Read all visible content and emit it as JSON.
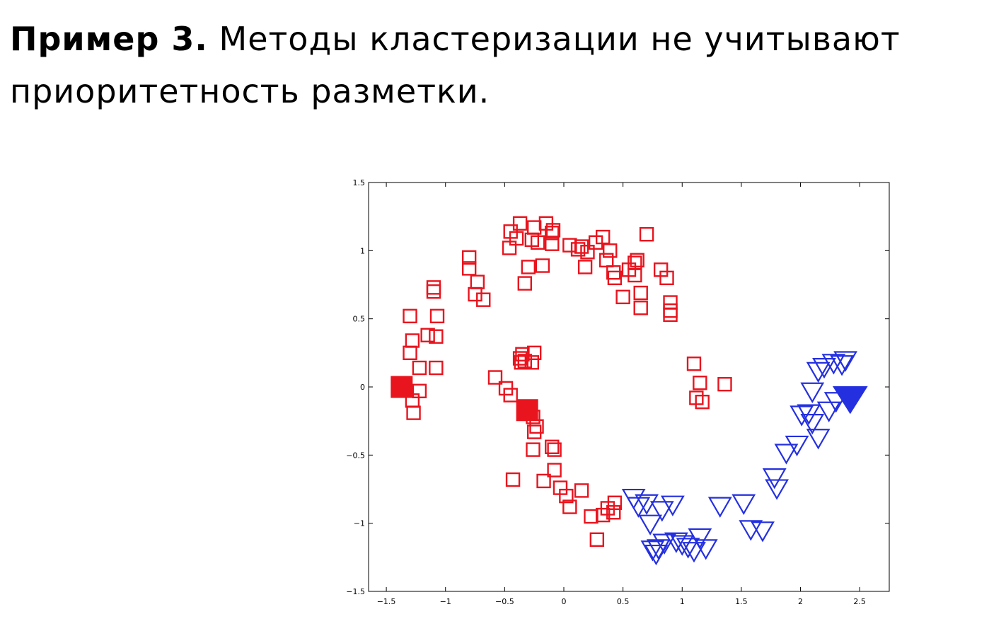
{
  "slide": {
    "title_lead": "Пример 3.",
    "title_rest": " Методы кластеризации не учитывают приоритетность разметки."
  },
  "colors": {
    "cluster_red": "#e8141e",
    "cluster_blue": "#2430e0"
  },
  "chart_data": {
    "type": "scatter",
    "title": "",
    "xlabel": "",
    "ylabel": "",
    "xlim": [
      -1.65,
      2.75
    ],
    "ylim": [
      -1.5,
      1.5
    ],
    "grid": false,
    "xticks": [
      -1.5,
      -1,
      -0.5,
      0,
      0.5,
      1,
      1.5,
      2,
      2.5
    ],
    "xtick_labels": [
      "−1.5",
      "−1",
      "−0.5",
      "0",
      "0.5",
      "1",
      "1.5",
      "2",
      "2.5"
    ],
    "yticks": [
      1.5,
      1,
      0.5,
      0,
      -0.5,
      -1,
      -1.5
    ],
    "ytick_labels": [
      "1.5",
      "1",
      "0.5",
      "0",
      "−0.5",
      "−1",
      "−1.5"
    ],
    "series": [
      {
        "marker": "square-open",
        "color": "#e8141e",
        "points": [
          [
            -1.3,
            0.52
          ],
          [
            -1.3,
            0.25
          ],
          [
            -1.28,
            0.34
          ],
          [
            -1.22,
            0.14
          ],
          [
            -1.15,
            0.38
          ],
          [
            -1.1,
            0.73
          ],
          [
            -1.1,
            0.7
          ],
          [
            -1.08,
            0.37
          ],
          [
            -1.07,
            0.52
          ],
          [
            -1.08,
            0.14
          ],
          [
            -1.28,
            -0.1
          ],
          [
            -1.27,
            -0.19
          ],
          [
            -1.22,
            -0.03
          ],
          [
            -0.8,
            0.95
          ],
          [
            -0.8,
            0.87
          ],
          [
            -0.75,
            0.68
          ],
          [
            -0.73,
            0.77
          ],
          [
            -0.68,
            0.64
          ],
          [
            -0.45,
            1.14
          ],
          [
            -0.46,
            1.02
          ],
          [
            -0.4,
            1.09
          ],
          [
            -0.37,
            1.2
          ],
          [
            -0.33,
            0.76
          ],
          [
            -0.3,
            0.88
          ],
          [
            -0.27,
            1.08
          ],
          [
            -0.25,
            1.17
          ],
          [
            -0.22,
            1.06
          ],
          [
            -0.18,
            0.89
          ],
          [
            -0.15,
            1.2
          ],
          [
            -0.1,
            1.13
          ],
          [
            -0.09,
            1.15
          ],
          [
            -0.1,
            1.05
          ],
          [
            0.05,
            1.04
          ],
          [
            0.12,
            1.01
          ],
          [
            0.15,
            1.03
          ],
          [
            0.18,
            0.88
          ],
          [
            0.2,
            0.99
          ],
          [
            0.27,
            1.06
          ],
          [
            0.33,
            1.1
          ],
          [
            0.36,
            0.93
          ],
          [
            0.39,
            1.0
          ],
          [
            0.42,
            0.84
          ],
          [
            0.43,
            0.8
          ],
          [
            0.5,
            0.66
          ],
          [
            0.55,
            0.86
          ],
          [
            0.6,
            0.91
          ],
          [
            0.6,
            0.82
          ],
          [
            0.62,
            0.93
          ],
          [
            0.65,
            0.69
          ],
          [
            0.65,
            0.58
          ],
          [
            0.7,
            1.12
          ],
          [
            0.82,
            0.86
          ],
          [
            0.87,
            0.8
          ],
          [
            0.9,
            0.62
          ],
          [
            0.9,
            0.53
          ],
          [
            0.9,
            0.56
          ],
          [
            -0.37,
            0.21
          ],
          [
            -0.35,
            0.24
          ],
          [
            -0.33,
            0.19
          ],
          [
            -0.36,
            0.18
          ],
          [
            -0.27,
            0.18
          ],
          [
            -0.25,
            0.25
          ],
          [
            -0.58,
            0.07
          ],
          [
            -0.49,
            -0.01
          ],
          [
            -0.45,
            -0.06
          ],
          [
            -0.26,
            -0.22
          ],
          [
            -0.25,
            -0.33
          ],
          [
            -0.23,
            -0.29
          ],
          [
            -0.26,
            -0.46
          ],
          [
            -0.1,
            -0.44
          ],
          [
            -0.08,
            -0.46
          ],
          [
            -0.43,
            -0.68
          ],
          [
            -0.17,
            -0.69
          ],
          [
            -0.08,
            -0.61
          ],
          [
            -0.03,
            -0.74
          ],
          [
            0.02,
            -0.8
          ],
          [
            0.05,
            -0.88
          ],
          [
            0.15,
            -0.76
          ],
          [
            0.23,
            -0.95
          ],
          [
            0.28,
            -1.12
          ],
          [
            0.33,
            -0.94
          ],
          [
            0.37,
            -0.89
          ],
          [
            0.42,
            -0.92
          ],
          [
            0.43,
            -0.85
          ],
          [
            1.1,
            0.17
          ],
          [
            1.15,
            0.03
          ],
          [
            1.12,
            -0.08
          ],
          [
            1.17,
            -0.11
          ],
          [
            1.36,
            0.02
          ]
        ]
      },
      {
        "marker": "square-filled",
        "color": "#e8141e",
        "points": [
          [
            -1.37,
            0.0
          ],
          [
            -0.31,
            -0.17
          ]
        ]
      },
      {
        "marker": "triangle-down-open",
        "color": "#2430e0",
        "points": [
          [
            0.59,
            -0.81
          ],
          [
            0.63,
            -0.87
          ],
          [
            0.7,
            -0.85
          ],
          [
            0.73,
            -1.0
          ],
          [
            0.75,
            -1.19
          ],
          [
            0.78,
            -1.22
          ],
          [
            0.8,
            -1.18
          ],
          [
            0.83,
            -0.9
          ],
          [
            0.85,
            -1.14
          ],
          [
            0.92,
            -0.86
          ],
          [
            0.95,
            -1.13
          ],
          [
            1.0,
            -1.15
          ],
          [
            1.05,
            -1.17
          ],
          [
            1.1,
            -1.2
          ],
          [
            1.15,
            -1.1
          ],
          [
            1.2,
            -1.18
          ],
          [
            1.32,
            -0.87
          ],
          [
            1.52,
            -0.85
          ],
          [
            1.58,
            -1.04
          ],
          [
            1.68,
            -1.05
          ],
          [
            1.78,
            -0.66
          ],
          [
            1.8,
            -0.74
          ],
          [
            1.88,
            -0.48
          ],
          [
            1.97,
            -0.42
          ],
          [
            2.01,
            -0.2
          ],
          [
            2.07,
            -0.19
          ],
          [
            2.1,
            -0.26
          ],
          [
            2.1,
            -0.03
          ],
          [
            2.15,
            -0.37
          ],
          [
            2.15,
            0.12
          ],
          [
            2.2,
            0.15
          ],
          [
            2.24,
            -0.17
          ],
          [
            2.28,
            0.18
          ],
          [
            2.3,
            -0.1
          ],
          [
            2.35,
            0.17
          ],
          [
            2.38,
            0.2
          ]
        ]
      },
      {
        "marker": "triangle-down-filled",
        "color": "#2430e0",
        "points": [
          [
            2.42,
            -0.08
          ]
        ]
      }
    ]
  }
}
